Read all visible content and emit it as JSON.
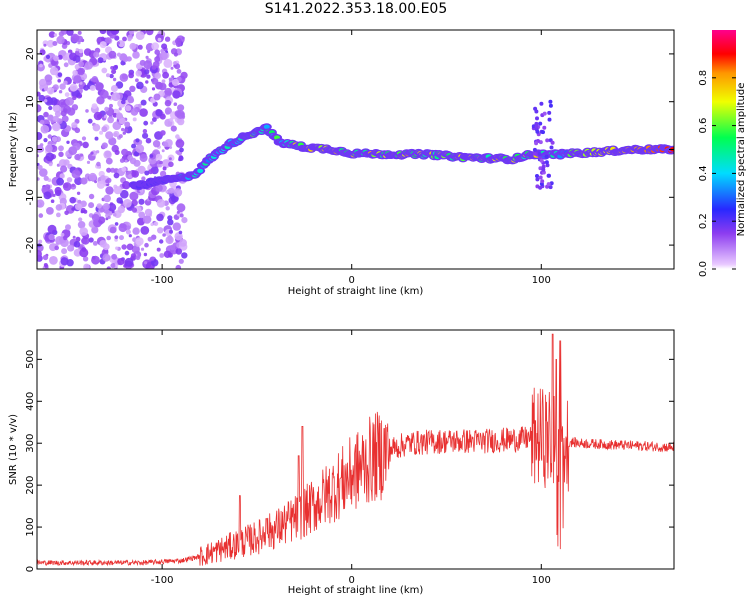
{
  "title": "S141.2022.353.18.00.E05",
  "chart_data": [
    {
      "type": "heatmap",
      "xlabel": "Height of straight line (km)",
      "ylabel": "Frequency (Hz)",
      "xlim": [
        -166,
        170
      ],
      "ylim": [
        -25,
        25
      ],
      "xticks": [
        -100,
        0,
        100
      ],
      "yticks": [
        -20,
        -10,
        0,
        10,
        20
      ],
      "ridge": {
        "description_points": [
          [
            -112,
            -7.5
          ],
          [
            -100,
            -6.5
          ],
          [
            -90,
            -6
          ],
          [
            -82,
            -5
          ],
          [
            -75,
            -2
          ],
          [
            -65,
            1
          ],
          [
            -55,
            3
          ],
          [
            -45,
            4.5
          ],
          [
            -38,
            1.5
          ],
          [
            -25,
            0.5
          ],
          [
            -10,
            0
          ],
          [
            0,
            -0.8
          ],
          [
            20,
            -1
          ],
          [
            40,
            -1
          ],
          [
            55,
            -1.5
          ],
          [
            70,
            -1.8
          ],
          [
            85,
            -2
          ],
          [
            95,
            -1
          ],
          [
            100,
            -1
          ],
          [
            110,
            -1
          ],
          [
            130,
            -0.5
          ],
          [
            150,
            0
          ],
          [
            170,
            0
          ]
        ]
      },
      "colorbar": {
        "label": "Normalized spectral amplitude",
        "range": [
          0,
          1
        ],
        "ticks": [
          "0.0",
          "0.2",
          "0.4",
          "0.6",
          "0.8"
        ],
        "tick_values": [
          0,
          0.2,
          0.4,
          0.6,
          0.8
        ]
      }
    },
    {
      "type": "line",
      "xlabel": "Height of straight line (km)",
      "ylabel": "SNR (10 * v/v)",
      "xlim": [
        -166,
        170
      ],
      "ylim": [
        0,
        570
      ],
      "xticks": [
        -100,
        0,
        100
      ],
      "yticks": [
        0,
        100,
        200,
        300,
        400,
        500
      ],
      "color": "#e83030",
      "envelope": [
        [
          -166,
          15
        ],
        [
          -110,
          15
        ],
        [
          -90,
          20
        ],
        [
          -80,
          30
        ],
        [
          -70,
          45
        ],
        [
          -60,
          60
        ],
        [
          -50,
          75
        ],
        [
          -40,
          95
        ],
        [
          -30,
          120
        ],
        [
          -20,
          150
        ],
        [
          -10,
          190
        ],
        [
          0,
          225
        ],
        [
          10,
          260
        ],
        [
          20,
          285
        ],
        [
          30,
          300
        ],
        [
          50,
          305
        ],
        [
          70,
          305
        ],
        [
          90,
          310
        ],
        [
          100,
          315
        ],
        [
          105,
          310
        ],
        [
          112,
          305
        ],
        [
          120,
          300
        ],
        [
          170,
          290
        ]
      ],
      "spikes": [
        [
          -59,
          175
        ],
        [
          -45,
          120
        ],
        [
          -26,
          340
        ],
        [
          -28,
          270
        ],
        [
          106,
          560
        ],
        [
          108,
          500
        ],
        [
          110,
          545
        ]
      ]
    }
  ]
}
